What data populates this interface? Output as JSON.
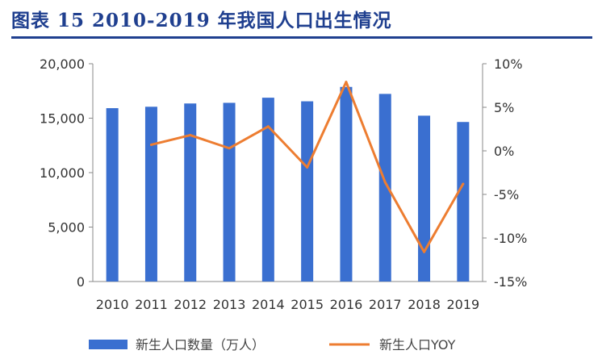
{
  "title": "图表 15   2010-2019 年我国人口出生情况",
  "chart_data": {
    "type": "bar+line",
    "categories": [
      "2010",
      "2011",
      "2012",
      "2013",
      "2014",
      "2015",
      "2016",
      "2017",
      "2018",
      "2019"
    ],
    "series": [
      {
        "name": "新生人口数量（万人）",
        "type": "bar",
        "axis": "left",
        "color": "#3a6fd0",
        "values": [
          15920,
          16050,
          16350,
          16410,
          16880,
          16550,
          17870,
          17230,
          15230,
          14650
        ]
      },
      {
        "name": "新生人口YOY",
        "type": "line",
        "axis": "right",
        "color": "#ed7d31",
        "values": [
          null,
          0.7,
          1.8,
          0.3,
          2.8,
          -1.9,
          7.9,
          -3.6,
          -11.6,
          -3.8
        ]
      }
    ],
    "y_left": {
      "min": 0,
      "max": 20000,
      "ticks": [
        "0",
        "5,000",
        "10,000",
        "15,000",
        "20,000"
      ]
    },
    "y_right": {
      "min": -15,
      "max": 10,
      "ticks": [
        "-15%",
        "-10%",
        "-5%",
        "0%",
        "5%",
        "10%"
      ]
    },
    "legend_position": "bottom",
    "grid": false
  }
}
